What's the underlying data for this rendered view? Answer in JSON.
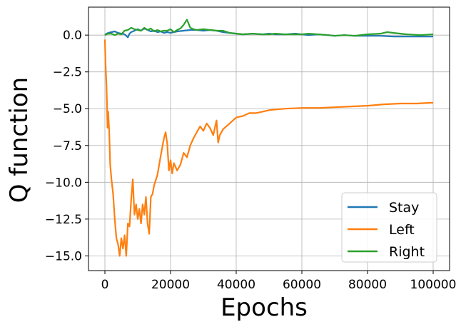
{
  "chart_data": {
    "type": "line",
    "title": "",
    "xlabel": "Epochs",
    "ylabel": "Q function",
    "xlim": [
      -5000,
      105000
    ],
    "ylim": [
      -16.0,
      1.9
    ],
    "xticks": [
      0,
      20000,
      40000,
      60000,
      80000,
      100000
    ],
    "xtick_labels": [
      "0",
      "20000",
      "40000",
      "60000",
      "80000",
      "100000"
    ],
    "yticks": [
      0.0,
      -2.5,
      -5.0,
      -7.5,
      -10.0,
      -12.5,
      -15.0
    ],
    "ytick_labels": [
      "0.0",
      "−2.5",
      "−5.0",
      "−7.5",
      "−10.0",
      "−12.5",
      "−15.0"
    ],
    "grid": true,
    "legend_position": "lower right",
    "series": [
      {
        "name": "Stay",
        "color": "#1f77b4",
        "x": [
          0,
          500,
          1000,
          2000,
          3000,
          4000,
          5000,
          6000,
          7000,
          7500,
          8000,
          9000,
          10000,
          11000,
          12000,
          13000,
          14000,
          15000,
          16000,
          17000,
          18000,
          19000,
          20000,
          22000,
          24000,
          26000,
          28000,
          30000,
          32000,
          34000,
          35000,
          36000,
          38000,
          40000,
          42000,
          45000,
          48000,
          50000,
          52000,
          55000,
          58000,
          60000,
          62000,
          65000,
          68000,
          70000,
          73000,
          76000,
          80000,
          84000,
          88000,
          92000,
          96000,
          100000
        ],
        "y": [
          0.0,
          0.1,
          0.15,
          0.2,
          0.25,
          0.15,
          0.1,
          0.05,
          -0.15,
          0.1,
          0.2,
          0.3,
          0.4,
          0.3,
          0.45,
          0.35,
          0.25,
          0.3,
          0.2,
          0.25,
          0.15,
          0.2,
          0.15,
          0.25,
          0.3,
          0.35,
          0.35,
          0.3,
          0.35,
          0.3,
          0.25,
          0.2,
          0.15,
          0.1,
          0.05,
          0.1,
          0.05,
          0.1,
          0.05,
          0.05,
          0.1,
          0.05,
          0.0,
          0.05,
          0.0,
          -0.05,
          0.0,
          -0.05,
          -0.05,
          -0.05,
          -0.1,
          -0.1,
          -0.1,
          -0.1
        ]
      },
      {
        "name": "Left",
        "color": "#ff7f0e",
        "x": [
          0,
          200,
          500,
          800,
          1000,
          1300,
          1600,
          2000,
          2500,
          3000,
          3500,
          4000,
          4500,
          5000,
          5500,
          6000,
          6500,
          7000,
          7500,
          8000,
          8500,
          9000,
          9500,
          10000,
          10500,
          11000,
          11500,
          12000,
          12500,
          13000,
          13500,
          14000,
          14500,
          15000,
          16000,
          17000,
          18000,
          18500,
          19000,
          19500,
          20000,
          20500,
          21000,
          22000,
          23000,
          24000,
          25000,
          26000,
          27000,
          28000,
          29000,
          30000,
          31000,
          32000,
          33000,
          34000,
          34500,
          35000,
          36000,
          38000,
          40000,
          42000,
          44000,
          46000,
          48000,
          50000,
          52000,
          55000,
          60000,
          65000,
          70000,
          75000,
          80000,
          85000,
          90000,
          95000,
          99000,
          100000
        ],
        "y": [
          -0.3,
          -2.0,
          -3.5,
          -6.3,
          -5.2,
          -6.5,
          -8.8,
          -9.8,
          -10.8,
          -12.5,
          -13.8,
          -14.2,
          -15.0,
          -13.8,
          -14.5,
          -13.6,
          -15.0,
          -12.8,
          -13.0,
          -11.2,
          -9.8,
          -12.2,
          -11.5,
          -12.5,
          -11.8,
          -12.8,
          -11.5,
          -12.2,
          -11.0,
          -12.8,
          -13.5,
          -11.0,
          -10.8,
          -10.2,
          -9.5,
          -8.2,
          -7.0,
          -6.6,
          -7.4,
          -9.2,
          -8.5,
          -9.4,
          -8.7,
          -9.2,
          -8.8,
          -8.0,
          -8.3,
          -7.5,
          -7.0,
          -6.6,
          -6.2,
          -6.5,
          -6.0,
          -6.3,
          -6.8,
          -5.8,
          -7.3,
          -6.8,
          -6.4,
          -6.0,
          -5.6,
          -5.5,
          -5.3,
          -5.3,
          -5.2,
          -5.1,
          -5.05,
          -5.0,
          -4.95,
          -4.95,
          -4.9,
          -4.85,
          -4.8,
          -4.7,
          -4.65,
          -4.65,
          -4.6,
          -4.6
        ]
      },
      {
        "name": "Right",
        "color": "#2ca02c",
        "x": [
          0,
          500,
          1000,
          2000,
          3000,
          4000,
          5000,
          6000,
          7000,
          8000,
          9000,
          10000,
          11000,
          12000,
          13000,
          14000,
          15000,
          16000,
          17000,
          18000,
          19000,
          20000,
          21000,
          22000,
          23000,
          24000,
          25000,
          26000,
          27000,
          28000,
          30000,
          32000,
          34000,
          36000,
          38000,
          40000,
          42000,
          45000,
          48000,
          50000,
          52000,
          55000,
          58000,
          60000,
          62000,
          65000,
          68000,
          70000,
          73000,
          76000,
          80000,
          84000,
          86000,
          88000,
          92000,
          96000,
          100000
        ],
        "y": [
          0.0,
          0.05,
          0.1,
          0.1,
          0.0,
          0.1,
          0.05,
          0.3,
          0.35,
          0.5,
          0.4,
          0.35,
          0.3,
          0.5,
          0.35,
          0.45,
          0.25,
          0.35,
          0.25,
          0.3,
          0.3,
          0.4,
          0.2,
          0.35,
          0.45,
          0.7,
          1.05,
          0.5,
          0.4,
          0.35,
          0.4,
          0.35,
          0.3,
          0.3,
          0.15,
          0.1,
          0.05,
          0.1,
          0.05,
          0.05,
          0.1,
          0.05,
          0.05,
          0.05,
          0.1,
          0.05,
          0.0,
          -0.05,
          0.0,
          -0.05,
          0.05,
          0.1,
          0.2,
          0.15,
          0.05,
          0.0,
          0.05
        ]
      }
    ]
  }
}
